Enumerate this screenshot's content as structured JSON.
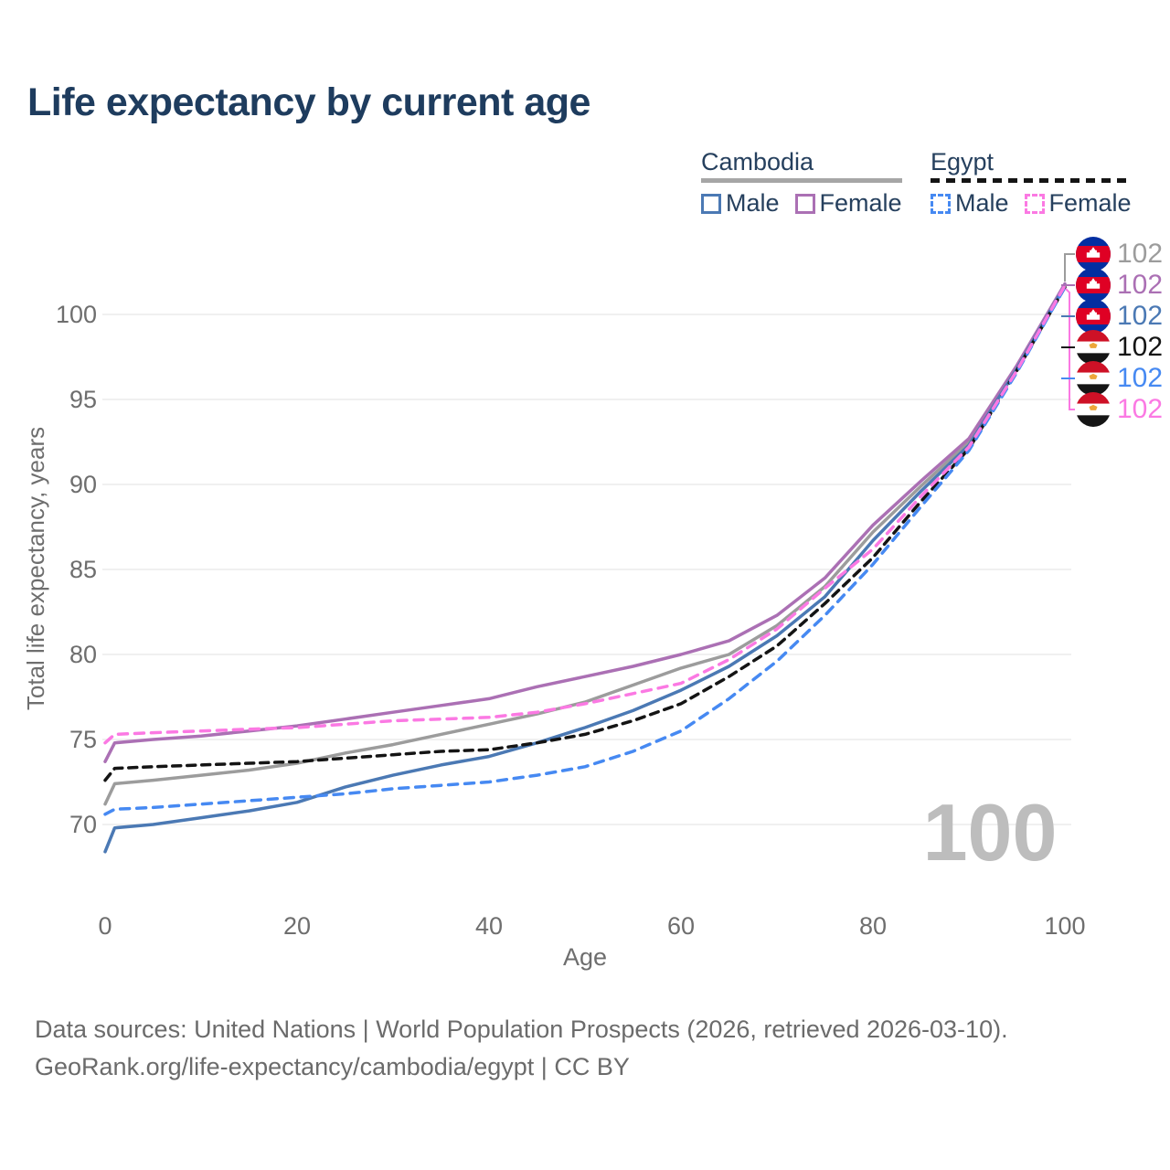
{
  "title": "Life expectancy by current age",
  "colors": {
    "title_text": "#1e3c5e",
    "legend_text": "#26405e",
    "axis_text": "#6e6e6e",
    "gridline": "#ececec",
    "watermark": "#bdbdbd",
    "footer_text": "#6b6b6b",
    "cambodia_male": "#4b79b4",
    "cambodia_female": "#ab70b4",
    "cambodia_both": "#9c9c9c",
    "egypt_male": "#4689f2",
    "egypt_female": "#fb79e3",
    "egypt_both": "#141414"
  },
  "legend": {
    "groups": [
      {
        "id": "cambodia",
        "label": "Cambodia",
        "underline_style": "solid",
        "underline_color": "#a6a6a6",
        "items": [
          {
            "id": "cambodia-male",
            "label": "Male",
            "color": "#4b79b4",
            "dashed": false
          },
          {
            "id": "cambodia-female",
            "label": "Female",
            "color": "#ab70b4",
            "dashed": false
          }
        ]
      },
      {
        "id": "egypt",
        "label": "Egypt",
        "underline_style": "dashed",
        "underline_color": "#141414",
        "items": [
          {
            "id": "egypt-male",
            "label": "Male",
            "color": "#4689f2",
            "dashed": true
          },
          {
            "id": "egypt-female",
            "label": "Female",
            "color": "#fb79e3",
            "dashed": true
          }
        ]
      }
    ]
  },
  "chart_data": {
    "type": "line",
    "title": "Life expectancy by current age",
    "xlabel": "Age",
    "ylabel": "Total life expectancy, years",
    "xlim": [
      0,
      100
    ],
    "ylim": [
      67,
      103
    ],
    "xticks": [
      0,
      20,
      40,
      60,
      80,
      100
    ],
    "yticks": [
      70,
      75,
      80,
      85,
      90,
      95,
      100
    ],
    "grid": "horizontal",
    "legend_position": "top-right",
    "x": [
      0,
      1,
      5,
      10,
      15,
      20,
      25,
      30,
      35,
      40,
      45,
      50,
      55,
      60,
      65,
      70,
      75,
      80,
      85,
      90,
      95,
      100
    ],
    "series": [
      {
        "name": "Cambodia Both sexes",
        "country": "Cambodia",
        "sex": "Both",
        "color": "#9c9c9c",
        "dash": null,
        "values": [
          71.2,
          72.4,
          72.6,
          72.9,
          73.2,
          73.6,
          74.2,
          74.7,
          75.3,
          75.9,
          76.5,
          77.2,
          78.2,
          79.2,
          80.0,
          81.7,
          84.0,
          87.2,
          89.9,
          92.5,
          96.9,
          101.7
        ]
      },
      {
        "name": "Cambodia Female",
        "country": "Cambodia",
        "sex": "Female",
        "color": "#ab70b4",
        "dash": null,
        "values": [
          73.7,
          74.8,
          75.0,
          75.2,
          75.5,
          75.8,
          76.2,
          76.6,
          77.0,
          77.4,
          78.1,
          78.7,
          79.3,
          80.0,
          80.8,
          82.3,
          84.5,
          87.6,
          90.2,
          92.7,
          97.0,
          101.8
        ]
      },
      {
        "name": "Cambodia Male",
        "country": "Cambodia",
        "sex": "Male",
        "color": "#4b79b4",
        "dash": null,
        "values": [
          68.4,
          69.8,
          70.0,
          70.4,
          70.8,
          71.3,
          72.2,
          72.9,
          73.5,
          74.0,
          74.8,
          75.7,
          76.7,
          77.9,
          79.3,
          81.1,
          83.4,
          86.7,
          89.6,
          92.3,
          96.8,
          101.7
        ]
      },
      {
        "name": "Egypt Both sexes",
        "country": "Egypt",
        "sex": "Both",
        "color": "#141414",
        "dash": "9 7",
        "values": [
          72.6,
          73.3,
          73.4,
          73.5,
          73.6,
          73.7,
          73.9,
          74.1,
          74.3,
          74.4,
          74.8,
          75.3,
          76.1,
          77.1,
          78.7,
          80.5,
          83.0,
          85.7,
          89.0,
          92.1,
          96.7,
          101.6
        ]
      },
      {
        "name": "Egypt Male",
        "country": "Egypt",
        "sex": "Male",
        "color": "#4689f2",
        "dash": "10 8",
        "values": [
          70.6,
          70.9,
          71.0,
          71.2,
          71.4,
          71.6,
          71.8,
          72.1,
          72.3,
          72.5,
          72.9,
          73.4,
          74.3,
          75.5,
          77.4,
          79.6,
          82.3,
          85.3,
          88.7,
          92.0,
          96.6,
          101.6
        ]
      },
      {
        "name": "Egypt Female",
        "country": "Egypt",
        "sex": "Female",
        "color": "#fb79e3",
        "dash": "10 8",
        "values": [
          74.8,
          75.3,
          75.4,
          75.5,
          75.6,
          75.7,
          75.9,
          76.1,
          76.2,
          76.3,
          76.6,
          77.1,
          77.7,
          78.3,
          79.7,
          81.5,
          83.9,
          86.2,
          89.3,
          92.2,
          96.7,
          101.7
        ]
      }
    ]
  },
  "end_labels": [
    {
      "flag": "cambodia",
      "series": "Cambodia Both sexes",
      "value": "102",
      "color": "#9c9c9c"
    },
    {
      "flag": "cambodia",
      "series": "Cambodia Female",
      "value": "102",
      "color": "#ab70b4"
    },
    {
      "flag": "cambodia",
      "series": "Cambodia Male",
      "value": "102",
      "color": "#4b79b4"
    },
    {
      "flag": "egypt",
      "series": "Egypt Both sexes",
      "value": "102",
      "color": "#141414"
    },
    {
      "flag": "egypt",
      "series": "Egypt Male",
      "value": "102",
      "color": "#4689f2"
    },
    {
      "flag": "egypt",
      "series": "Egypt Female",
      "value": "102",
      "color": "#fb79e3"
    }
  ],
  "watermark": "100",
  "footer": {
    "line1": "Data sources: United Nations | World Population Prospects (2026, retrieved 2026-03-10).",
    "line2": "GeoRank.org/life-expectancy/cambodia/egypt | CC BY"
  }
}
